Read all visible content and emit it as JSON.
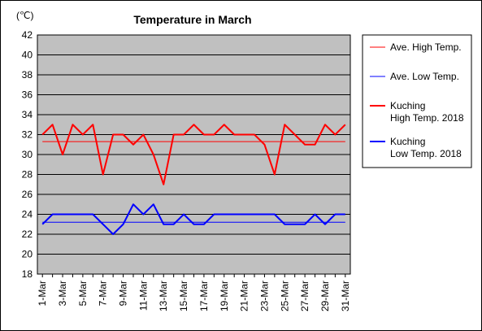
{
  "chart_data": {
    "type": "line",
    "title": "Temperature in March",
    "unit_label": "(℃)",
    "ylim": [
      18,
      42
    ],
    "yticks": [
      18,
      20,
      22,
      24,
      26,
      28,
      30,
      32,
      34,
      36,
      38,
      40,
      42
    ],
    "grid": true,
    "legend_placement": "right",
    "categories": [
      "1-Mar",
      "2-Mar",
      "3-Mar",
      "4-Mar",
      "5-Mar",
      "6-Mar",
      "7-Mar",
      "8-Mar",
      "9-Mar",
      "10-Mar",
      "11-Mar",
      "12-Mar",
      "13-Mar",
      "14-Mar",
      "15-Mar",
      "16-Mar",
      "17-Mar",
      "18-Mar",
      "19-Mar",
      "20-Mar",
      "21-Mar",
      "22-Mar",
      "23-Mar",
      "24-Mar",
      "25-Mar",
      "26-Mar",
      "27-Mar",
      "28-Mar",
      "29-Mar",
      "30-Mar",
      "31-Mar"
    ],
    "xtick_labels": [
      "1-Mar",
      "3-Mar",
      "5-Mar",
      "7-Mar",
      "9-Mar",
      "11-Mar",
      "13-Mar",
      "15-Mar",
      "17-Mar",
      "19-Mar",
      "21-Mar",
      "23-Mar",
      "25-Mar",
      "27-Mar",
      "29-Mar",
      "31-Mar"
    ],
    "series": [
      {
        "name": "Ave. High Temp.",
        "color": "#ff0000",
        "width": 1,
        "values": [
          31.3,
          31.3,
          31.3,
          31.3,
          31.3,
          31.3,
          31.3,
          31.3,
          31.3,
          31.3,
          31.3,
          31.3,
          31.3,
          31.3,
          31.3,
          31.3,
          31.3,
          31.3,
          31.3,
          31.3,
          31.3,
          31.3,
          31.3,
          31.3,
          31.3,
          31.3,
          31.3,
          31.3,
          31.3,
          31.3,
          31.3
        ]
      },
      {
        "name": "Ave. Low Temp.",
        "color": "#0000ff",
        "width": 1,
        "values": [
          23.2,
          23.2,
          23.2,
          23.2,
          23.2,
          23.2,
          23.2,
          23.2,
          23.2,
          23.2,
          23.2,
          23.2,
          23.2,
          23.2,
          23.2,
          23.2,
          23.2,
          23.2,
          23.2,
          23.2,
          23.2,
          23.2,
          23.2,
          23.2,
          23.2,
          23.2,
          23.2,
          23.2,
          23.2,
          23.2,
          23.2
        ]
      },
      {
        "name": "Kuching High Temp. 2018",
        "name_lines": [
          "Kuching",
          "High Temp. 2018"
        ],
        "color": "#ff0000",
        "width": 2,
        "values": [
          32,
          33,
          30,
          33,
          32,
          33,
          28,
          32,
          32,
          31,
          32,
          30,
          27,
          32,
          32,
          33,
          32,
          32,
          33,
          32,
          32,
          32,
          31,
          28,
          33,
          32,
          31,
          31,
          33,
          32,
          33
        ]
      },
      {
        "name": "Kuching Low Temp. 2018",
        "name_lines": [
          "Kuching",
          "Low Temp. 2018"
        ],
        "color": "#0000ff",
        "width": 2,
        "values": [
          23,
          24,
          24,
          24,
          24,
          24,
          23,
          22,
          23,
          25,
          24,
          25,
          23,
          23,
          24,
          23,
          23,
          24,
          24,
          24,
          24,
          24,
          24,
          24,
          23,
          23,
          23,
          24,
          23,
          24,
          24
        ]
      }
    ]
  }
}
